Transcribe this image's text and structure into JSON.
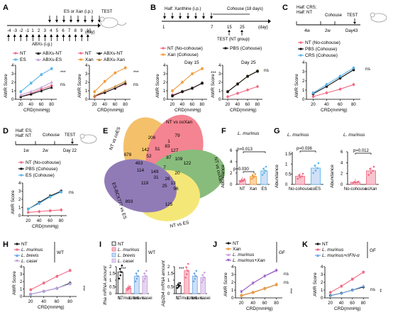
{
  "colors": {
    "pink": "#f06a84",
    "blue": "#5ab4e8",
    "black": "#111111",
    "grey": "#8c8c8c",
    "orange": "#f19a3a",
    "brown": "#c98a36",
    "lilac": "#c4a2dc",
    "lblue": "#6aa6e6",
    "violet": "#9c5fc7"
  },
  "A": {
    "label": "A",
    "timeline": {
      "top_text": "ES or Xan (i.p.)",
      "test": "TEST",
      "days": [
        "-4",
        "-3",
        "-2",
        "-1",
        "1",
        "2",
        "3",
        "4",
        "5",
        "6",
        "7",
        "8",
        "9",
        "10"
      ],
      "day_unit": "(day)",
      "bottom_text": "ABXs (i.g.)"
    },
    "legend1": [
      "NT",
      "ES",
      "ABXs-NT",
      "ABXs-ES"
    ],
    "legend2": [
      "NT",
      "Xan",
      "ABXs-NT",
      "ABXs-Xan"
    ],
    "y_label": "AWR Score",
    "x_label": "CRD(mmHg)",
    "sig1": [
      "***",
      "ns"
    ],
    "sig2": [
      "***",
      "ns"
    ]
  },
  "B": {
    "label": "B",
    "timeline": {
      "top_text": "Half: Xanthine (i.p.)",
      "cohouse": "Cohouse (18 days)",
      "days": [
        "1",
        "7",
        "15",
        "25"
      ],
      "day_unit": "(day)",
      "test": "TEST (NT group)"
    },
    "legend": [
      "NT (No-cohouse)",
      "PBS (Cohouse)",
      "Xan (Cohouse)"
    ],
    "day15": "Day 15",
    "day25": "Day 25",
    "y_label": "AWR Score",
    "x_label": "CRD(mmHg)",
    "sig1": "***",
    "sig2": "ns"
  },
  "C": {
    "label": "C",
    "timeline": {
      "half1": "Half: CRS;",
      "half2": "Half: NT",
      "cohouse": "Cohouse",
      "test": "TEST",
      "ticks": [
        "4w",
        "2w",
        "Day43"
      ]
    },
    "legend": [
      "NT (No-cohouse)",
      "PBS (Cohouse)",
      "CRS (Cohouse)"
    ],
    "y_label": "AWR Score",
    "x_label": "CRD(mmHg)",
    "sig": "ns"
  },
  "D": {
    "label": "D",
    "timeline": {
      "half1": "Half: ES;",
      "half2": "Half: NT",
      "cohouse": "Cohouse",
      "test": "TEST",
      "ticks": [
        "1w",
        "2w",
        "Day 22"
      ]
    },
    "legend": [
      "NT (No-cohouse)",
      "PBS (Cohouse)",
      "ES (Cohouse)"
    ],
    "y_label": "AWR Score",
    "x_label": "CRD(mmHg)",
    "sig": "ns"
  },
  "E": {
    "label": "E",
    "set_labels": [
      "NT vs coES",
      "NT vs coXan",
      "NT vs coXan",
      "NT vs ES",
      "ES-BCX777 vs ES"
    ],
    "numbers": [
      "83",
      "206",
      "79",
      "1",
      "878",
      "142",
      "51",
      "127",
      "122",
      "52",
      "87",
      "109",
      "493",
      "7",
      "114",
      "149",
      "20",
      "31",
      "26",
      "13",
      "119",
      "25",
      "96",
      "893",
      "125"
    ]
  },
  "F": {
    "label": "F",
    "title": "L. murinus",
    "y_label": "Abundance",
    "categories": [
      "NT",
      "Xan",
      "ES"
    ],
    "p1": "p=0.013",
    "p2": "p=0.030"
  },
  "G": {
    "label": "G",
    "title1": "L. murinus",
    "title2": "L. murinus",
    "y_label": "Abundance",
    "cats1": [
      "No-cohouse",
      "coES"
    ],
    "cats2": [
      "No-cohouse",
      "coXan"
    ],
    "p1": "p=0.036",
    "p2": "p=0.012"
  },
  "H": {
    "label": "H",
    "legend": [
      "NT",
      "L. murinus",
      "L. brevis",
      "L. casei"
    ],
    "group": "WT",
    "y_label": "AWR Score",
    "x_label": "CRD(mmHg)",
    "sig": "***"
  },
  "I": {
    "label": "I",
    "legend": [
      "NT",
      "L. murinus",
      "L. brevis",
      "L. casei"
    ],
    "group": "WT",
    "y_label1": "Ifna mRNA amount",
    "y_label2": "Atp2b4 mRNA amount",
    "sig1": "***",
    "sig2": "***"
  },
  "J": {
    "label": "J",
    "legend": [
      "NT",
      "Xan",
      "L. murinus",
      "L. murinus+Xan"
    ],
    "group": "GF",
    "y_label": "AWR Score",
    "x_label": "CRD(mmHg)",
    "sig1": "ns",
    "sig2": "***",
    "sig3": "ns"
  },
  "K": {
    "label": "K",
    "legend": [
      "NT",
      "L. murinus",
      "L. murinus+rIFN-α"
    ],
    "group": "GF",
    "y_label": "AWR Score",
    "x_label": "CRD(mmHg)",
    "sig1": "ns",
    "sig2": "**"
  },
  "chart_data": [
    {
      "type": "line",
      "title": "",
      "xlabel": "CRD(mmHg)",
      "ylabel": "AWR Score",
      "x": [
        20,
        40,
        60,
        80
      ],
      "ylim": [
        0,
        4
      ],
      "series": [
        {
          "name": "NT",
          "values": [
            0.3,
            0.7,
            1.2,
            1.6
          ]
        },
        {
          "name": "ES",
          "values": [
            0.9,
            1.9,
            2.9,
            3.6
          ]
        },
        {
          "name": "ABXs-NT",
          "values": [
            0.3,
            0.6,
            1.0,
            1.4
          ]
        },
        {
          "name": "ABXs-ES",
          "values": [
            0.5,
            0.9,
            1.4,
            2.0
          ]
        }
      ]
    },
    {
      "type": "line",
      "title": "",
      "xlabel": "CRD(mmHg)",
      "ylabel": "AWR Score",
      "x": [
        20,
        40,
        60,
        80
      ],
      "ylim": [
        0,
        4
      ],
      "series": [
        {
          "name": "NT",
          "values": [
            0.3,
            0.8,
            1.3,
            1.8
          ]
        },
        {
          "name": "Xan",
          "values": [
            0.9,
            2.1,
            3.1,
            3.7
          ]
        },
        {
          "name": "ABXs-NT",
          "values": [
            0.4,
            0.8,
            1.3,
            1.9
          ]
        },
        {
          "name": "ABXs-Xan",
          "values": [
            0.4,
            1.0,
            1.5,
            2.1
          ]
        }
      ]
    },
    {
      "type": "line",
      "title": "Day 15",
      "xlabel": "CRD(mmHg)",
      "ylabel": "AWR Score",
      "x": [
        20,
        40,
        60,
        80
      ],
      "ylim": [
        0,
        4
      ],
      "series": [
        {
          "name": "NT (No-cohouse)",
          "values": [
            0.5,
            0.9,
            1.3,
            1.9
          ]
        },
        {
          "name": "Xan (Cohouse)",
          "values": [
            1.0,
            2.0,
            3.0,
            3.6
          ]
        },
        {
          "name": "PBS (Cohouse)",
          "values": [
            0.4,
            0.9,
            1.3,
            1.9
          ]
        }
      ]
    },
    {
      "type": "line",
      "title": "Day 25",
      "xlabel": "CRD(mmHg)",
      "ylabel": "AWR Score",
      "x": [
        20,
        40,
        60,
        80
      ],
      "ylim": [
        0,
        4
      ],
      "series": [
        {
          "name": "NT (No-cohouse)",
          "values": [
            0.3,
            0.7,
            1.1,
            1.5
          ]
        },
        {
          "name": "Xan (Cohouse)",
          "values": [
            0.9,
            1.8,
            2.7,
            3.3
          ]
        },
        {
          "name": "PBS (Cohouse)",
          "values": [
            0.9,
            1.8,
            2.7,
            3.3
          ]
        }
      ]
    },
    {
      "type": "line",
      "title": "",
      "xlabel": "CRD(mmHg)",
      "ylabel": "AWR Score",
      "x": [
        20,
        40,
        60,
        80
      ],
      "ylim": [
        0,
        4
      ],
      "series": [
        {
          "name": "NT (No-cohouse)",
          "values": [
            0.3,
            0.7,
            1.1,
            1.6
          ]
        },
        {
          "name": "PBS (Cohouse)",
          "values": [
            0.6,
            1.4,
            2.3,
            3.2
          ]
        },
        {
          "name": "CRS (Cohouse)",
          "values": [
            0.7,
            1.6,
            2.5,
            3.4
          ]
        }
      ]
    },
    {
      "type": "line",
      "title": "",
      "xlabel": "CRD(mmHg)",
      "ylabel": "AWR Score",
      "x": [
        20,
        40,
        60,
        80
      ],
      "ylim": [
        0,
        4
      ],
      "series": [
        {
          "name": "NT (No-cohouse)",
          "values": [
            0.4,
            0.5,
            0.6,
            0.7
          ]
        },
        {
          "name": "PBS (Cohouse)",
          "values": [
            0.8,
            1.6,
            2.4,
            3.0
          ]
        },
        {
          "name": "ES (Cohouse)",
          "values": [
            0.8,
            1.5,
            2.3,
            2.9
          ]
        }
      ]
    },
    {
      "type": "bar",
      "title": "L. murinus",
      "ylabel": "Abundance",
      "categories": [
        "NT",
        "Xan",
        "ES"
      ],
      "values": [
        0.7,
        1.4,
        2.4
      ],
      "ylim": [
        0,
        6
      ]
    },
    {
      "type": "bar",
      "title": "L. murinus",
      "ylabel": "Abundance",
      "categories": [
        "No-cohouse",
        "coES"
      ],
      "values": [
        0.4,
        0.8
      ],
      "ylim": [
        0,
        1.6
      ]
    },
    {
      "type": "bar",
      "title": "L. murinus",
      "ylabel": "Abundance",
      "categories": [
        "No-cohouse",
        "coXan"
      ],
      "values": [
        0.4,
        2.5
      ],
      "ylim": [
        0,
        6
      ]
    },
    {
      "type": "line",
      "title": "",
      "xlabel": "CRD(mmHg)",
      "ylabel": "AWR Score",
      "x": [
        20,
        40,
        60,
        80
      ],
      "ylim": [
        0,
        4
      ],
      "series": [
        {
          "name": "NT",
          "values": [
            0.3,
            0.7,
            1.1,
            1.8
          ]
        },
        {
          "name": "L. murinus",
          "values": [
            0.9,
            1.8,
            2.7,
            3.5
          ]
        },
        {
          "name": "L. brevis",
          "values": [
            0.3,
            0.7,
            1.1,
            1.7
          ]
        },
        {
          "name": "L. casei",
          "values": [
            0.3,
            0.7,
            1.1,
            1.7
          ]
        }
      ]
    },
    {
      "type": "bar",
      "title": "",
      "ylabel": "Ifna mRNA amount",
      "categories": [
        "NT",
        "L. murinus",
        "L. brevis",
        "L. casei"
      ],
      "values": [
        1.6,
        0.4,
        1.3,
        1.3
      ],
      "ylim": [
        0,
        2
      ]
    },
    {
      "type": "bar",
      "title": "",
      "ylabel": "Atp2b4 mRNA amount",
      "categories": [
        "NT",
        "L. murinus",
        "L. brevis",
        "L. casei"
      ],
      "values": [
        0.6,
        1.7,
        1.3,
        1.2
      ],
      "ylim": [
        0,
        2
      ]
    },
    {
      "type": "line",
      "title": "",
      "xlabel": "CRD(mmHg)",
      "ylabel": "AWR Score",
      "x": [
        20,
        40,
        60,
        80
      ],
      "ylim": [
        0,
        4
      ],
      "series": [
        {
          "name": "NT",
          "values": [
            0.3,
            0.7,
            1.2,
            1.7
          ]
        },
        {
          "name": "Xan",
          "values": [
            0.3,
            0.7,
            1.2,
            1.7
          ]
        },
        {
          "name": "L. murinus",
          "values": [
            0.8,
            1.9,
            2.8,
            3.6
          ]
        },
        {
          "name": "L. murinus+Xan",
          "values": [
            0.8,
            1.9,
            2.8,
            3.5
          ]
        }
      ]
    },
    {
      "type": "line",
      "title": "",
      "xlabel": "CRD(mmHg)",
      "ylabel": "AWR Score",
      "x": [
        20,
        40,
        60,
        80
      ],
      "ylim": [
        0,
        4
      ],
      "series": [
        {
          "name": "NT",
          "values": [
            0.3,
            0.6,
            1.0,
            1.4
          ]
        },
        {
          "name": "L. murinus",
          "values": [
            0.7,
            1.5,
            2.4,
            3.3
          ]
        },
        {
          "name": "L. murinus+rIFN-α",
          "values": [
            0.3,
            0.6,
            1.0,
            1.5
          ]
        }
      ]
    }
  ]
}
